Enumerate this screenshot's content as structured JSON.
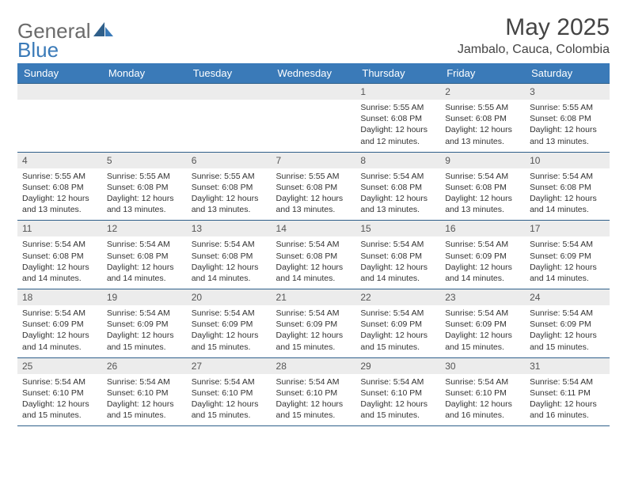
{
  "brand": {
    "part1": "General",
    "part2": "Blue"
  },
  "title": {
    "month": "May 2025",
    "location": "Jambalo, Cauca, Colombia"
  },
  "colors": {
    "header_bg": "#3a7ab8",
    "header_text": "#ffffff",
    "row_border": "#2f5f8a",
    "daynum_bg": "#ececec",
    "text": "#333333",
    "brand_gray": "#6b6b6b",
    "brand_blue": "#3a7ab8"
  },
  "weekdays": [
    "Sunday",
    "Monday",
    "Tuesday",
    "Wednesday",
    "Thursday",
    "Friday",
    "Saturday"
  ],
  "weeks": [
    [
      {
        "n": "",
        "lines": []
      },
      {
        "n": "",
        "lines": []
      },
      {
        "n": "",
        "lines": []
      },
      {
        "n": "",
        "lines": []
      },
      {
        "n": "1",
        "lines": [
          "Sunrise: 5:55 AM",
          "Sunset: 6:08 PM",
          "Daylight: 12 hours and 12 minutes."
        ]
      },
      {
        "n": "2",
        "lines": [
          "Sunrise: 5:55 AM",
          "Sunset: 6:08 PM",
          "Daylight: 12 hours and 13 minutes."
        ]
      },
      {
        "n": "3",
        "lines": [
          "Sunrise: 5:55 AM",
          "Sunset: 6:08 PM",
          "Daylight: 12 hours and 13 minutes."
        ]
      }
    ],
    [
      {
        "n": "4",
        "lines": [
          "Sunrise: 5:55 AM",
          "Sunset: 6:08 PM",
          "Daylight: 12 hours and 13 minutes."
        ]
      },
      {
        "n": "5",
        "lines": [
          "Sunrise: 5:55 AM",
          "Sunset: 6:08 PM",
          "Daylight: 12 hours and 13 minutes."
        ]
      },
      {
        "n": "6",
        "lines": [
          "Sunrise: 5:55 AM",
          "Sunset: 6:08 PM",
          "Daylight: 12 hours and 13 minutes."
        ]
      },
      {
        "n": "7",
        "lines": [
          "Sunrise: 5:55 AM",
          "Sunset: 6:08 PM",
          "Daylight: 12 hours and 13 minutes."
        ]
      },
      {
        "n": "8",
        "lines": [
          "Sunrise: 5:54 AM",
          "Sunset: 6:08 PM",
          "Daylight: 12 hours and 13 minutes."
        ]
      },
      {
        "n": "9",
        "lines": [
          "Sunrise: 5:54 AM",
          "Sunset: 6:08 PM",
          "Daylight: 12 hours and 13 minutes."
        ]
      },
      {
        "n": "10",
        "lines": [
          "Sunrise: 5:54 AM",
          "Sunset: 6:08 PM",
          "Daylight: 12 hours and 14 minutes."
        ]
      }
    ],
    [
      {
        "n": "11",
        "lines": [
          "Sunrise: 5:54 AM",
          "Sunset: 6:08 PM",
          "Daylight: 12 hours and 14 minutes."
        ]
      },
      {
        "n": "12",
        "lines": [
          "Sunrise: 5:54 AM",
          "Sunset: 6:08 PM",
          "Daylight: 12 hours and 14 minutes."
        ]
      },
      {
        "n": "13",
        "lines": [
          "Sunrise: 5:54 AM",
          "Sunset: 6:08 PM",
          "Daylight: 12 hours and 14 minutes."
        ]
      },
      {
        "n": "14",
        "lines": [
          "Sunrise: 5:54 AM",
          "Sunset: 6:08 PM",
          "Daylight: 12 hours and 14 minutes."
        ]
      },
      {
        "n": "15",
        "lines": [
          "Sunrise: 5:54 AM",
          "Sunset: 6:08 PM",
          "Daylight: 12 hours and 14 minutes."
        ]
      },
      {
        "n": "16",
        "lines": [
          "Sunrise: 5:54 AM",
          "Sunset: 6:09 PM",
          "Daylight: 12 hours and 14 minutes."
        ]
      },
      {
        "n": "17",
        "lines": [
          "Sunrise: 5:54 AM",
          "Sunset: 6:09 PM",
          "Daylight: 12 hours and 14 minutes."
        ]
      }
    ],
    [
      {
        "n": "18",
        "lines": [
          "Sunrise: 5:54 AM",
          "Sunset: 6:09 PM",
          "Daylight: 12 hours and 14 minutes."
        ]
      },
      {
        "n": "19",
        "lines": [
          "Sunrise: 5:54 AM",
          "Sunset: 6:09 PM",
          "Daylight: 12 hours and 15 minutes."
        ]
      },
      {
        "n": "20",
        "lines": [
          "Sunrise: 5:54 AM",
          "Sunset: 6:09 PM",
          "Daylight: 12 hours and 15 minutes."
        ]
      },
      {
        "n": "21",
        "lines": [
          "Sunrise: 5:54 AM",
          "Sunset: 6:09 PM",
          "Daylight: 12 hours and 15 minutes."
        ]
      },
      {
        "n": "22",
        "lines": [
          "Sunrise: 5:54 AM",
          "Sunset: 6:09 PM",
          "Daylight: 12 hours and 15 minutes."
        ]
      },
      {
        "n": "23",
        "lines": [
          "Sunrise: 5:54 AM",
          "Sunset: 6:09 PM",
          "Daylight: 12 hours and 15 minutes."
        ]
      },
      {
        "n": "24",
        "lines": [
          "Sunrise: 5:54 AM",
          "Sunset: 6:09 PM",
          "Daylight: 12 hours and 15 minutes."
        ]
      }
    ],
    [
      {
        "n": "25",
        "lines": [
          "Sunrise: 5:54 AM",
          "Sunset: 6:10 PM",
          "Daylight: 12 hours and 15 minutes."
        ]
      },
      {
        "n": "26",
        "lines": [
          "Sunrise: 5:54 AM",
          "Sunset: 6:10 PM",
          "Daylight: 12 hours and 15 minutes."
        ]
      },
      {
        "n": "27",
        "lines": [
          "Sunrise: 5:54 AM",
          "Sunset: 6:10 PM",
          "Daylight: 12 hours and 15 minutes."
        ]
      },
      {
        "n": "28",
        "lines": [
          "Sunrise: 5:54 AM",
          "Sunset: 6:10 PM",
          "Daylight: 12 hours and 15 minutes."
        ]
      },
      {
        "n": "29",
        "lines": [
          "Sunrise: 5:54 AM",
          "Sunset: 6:10 PM",
          "Daylight: 12 hours and 15 minutes."
        ]
      },
      {
        "n": "30",
        "lines": [
          "Sunrise: 5:54 AM",
          "Sunset: 6:10 PM",
          "Daylight: 12 hours and 16 minutes."
        ]
      },
      {
        "n": "31",
        "lines": [
          "Sunrise: 5:54 AM",
          "Sunset: 6:11 PM",
          "Daylight: 12 hours and 16 minutes."
        ]
      }
    ]
  ]
}
